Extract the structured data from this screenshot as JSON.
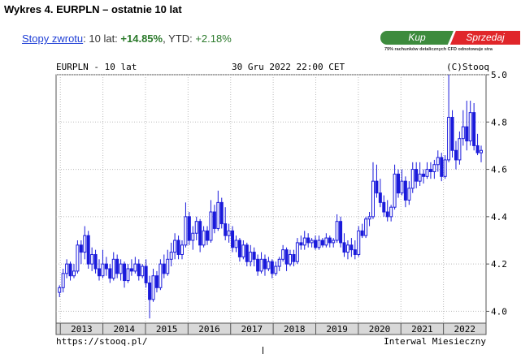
{
  "title": "Wykres 4. EURPLN – ostatnie 10 lat",
  "returns": {
    "link_label": "Stopy zwrotu",
    "period_label": ": 10 lat: ",
    "period_value": "+14.85%",
    "ytd_label": ", YTD: ",
    "ytd_value": "+2.18%"
  },
  "cta": {
    "buy_label": "Kup",
    "sell_label": "Sprzedaj",
    "note": "79% rachunków detalicznych CFD odnotowuje stra"
  },
  "chart_header": {
    "symbol": "EURPLN - 10 lat",
    "date": "30 Gru 2022 22:00 CET",
    "copyright": "(C)Stooq"
  },
  "chart_footer": {
    "source": "https://stooq.pl/",
    "interval": "Interwal Miesieczny"
  },
  "chart_data": {
    "type": "candlestick",
    "title": "EURPLN - 10 lat",
    "ylim": [
      3.95,
      5.0
    ],
    "y_ticks": [
      "4.0",
      "4.2",
      "4.4",
      "4.6",
      "4.8",
      "5.0"
    ],
    "x_ticks": [
      "2013",
      "2014",
      "2015",
      "2016",
      "2017",
      "2018",
      "2019",
      "2020",
      "2021",
      "2022"
    ],
    "x_range": [
      2012.9,
      2023.0
    ],
    "grid": true,
    "color": "#1a1adb",
    "ohlc": [
      [
        4.08,
        4.11,
        4.06,
        4.1
      ],
      [
        4.1,
        4.18,
        4.08,
        4.16
      ],
      [
        4.16,
        4.22,
        4.14,
        4.2
      ],
      [
        4.2,
        4.21,
        4.13,
        4.15
      ],
      [
        4.15,
        4.2,
        4.14,
        4.17
      ],
      [
        4.17,
        4.3,
        4.16,
        4.28
      ],
      [
        4.28,
        4.3,
        4.2,
        4.25
      ],
      [
        4.25,
        4.36,
        4.22,
        4.32
      ],
      [
        4.32,
        4.34,
        4.18,
        4.2
      ],
      [
        4.2,
        4.27,
        4.17,
        4.24
      ],
      [
        4.24,
        4.26,
        4.16,
        4.18
      ],
      [
        4.18,
        4.22,
        4.13,
        4.15
      ],
      [
        4.15,
        4.26,
        4.14,
        4.2
      ],
      [
        4.2,
        4.23,
        4.15,
        4.18
      ],
      [
        4.18,
        4.2,
        4.12,
        4.14
      ],
      [
        4.14,
        4.25,
        4.13,
        4.22
      ],
      [
        4.22,
        4.24,
        4.14,
        4.16
      ],
      [
        4.16,
        4.22,
        4.13,
        4.2
      ],
      [
        4.2,
        4.21,
        4.1,
        4.13
      ],
      [
        4.13,
        4.2,
        4.12,
        4.18
      ],
      [
        4.18,
        4.22,
        4.15,
        4.17
      ],
      [
        4.17,
        4.23,
        4.16,
        4.2
      ],
      [
        4.2,
        4.22,
        4.13,
        4.15
      ],
      [
        4.15,
        4.2,
        4.14,
        4.19
      ],
      [
        4.19,
        4.22,
        4.1,
        4.12
      ],
      [
        4.12,
        4.15,
        3.97,
        4.05
      ],
      [
        4.05,
        4.18,
        4.04,
        4.15
      ],
      [
        4.15,
        4.17,
        4.08,
        4.1
      ],
      [
        4.1,
        4.22,
        4.09,
        4.2
      ],
      [
        4.2,
        4.24,
        4.14,
        4.16
      ],
      [
        4.16,
        4.26,
        4.15,
        4.22
      ],
      [
        4.22,
        4.29,
        4.19,
        4.25
      ],
      [
        4.25,
        4.33,
        4.22,
        4.3
      ],
      [
        4.3,
        4.32,
        4.22,
        4.24
      ],
      [
        4.24,
        4.3,
        4.22,
        4.28
      ],
      [
        4.28,
        4.46,
        4.27,
        4.4
      ],
      [
        4.4,
        4.42,
        4.28,
        4.3
      ],
      [
        4.3,
        4.36,
        4.26,
        4.33
      ],
      [
        4.33,
        4.4,
        4.3,
        4.38
      ],
      [
        4.38,
        4.39,
        4.25,
        4.28
      ],
      [
        4.28,
        4.36,
        4.27,
        4.34
      ],
      [
        4.34,
        4.36,
        4.28,
        4.3
      ],
      [
        4.3,
        4.47,
        4.29,
        4.42
      ],
      [
        4.42,
        4.45,
        4.33,
        4.35
      ],
      [
        4.35,
        4.51,
        4.34,
        4.46
      ],
      [
        4.46,
        4.48,
        4.35,
        4.37
      ],
      [
        4.37,
        4.44,
        4.3,
        4.32
      ],
      [
        4.32,
        4.37,
        4.29,
        4.34
      ],
      [
        4.34,
        4.36,
        4.25,
        4.27
      ],
      [
        4.27,
        4.32,
        4.25,
        4.3
      ],
      [
        4.3,
        4.31,
        4.21,
        4.23
      ],
      [
        4.23,
        4.3,
        4.22,
        4.28
      ],
      [
        4.28,
        4.29,
        4.19,
        4.21
      ],
      [
        4.21,
        4.28,
        4.19,
        4.25
      ],
      [
        4.25,
        4.27,
        4.19,
        4.22
      ],
      [
        4.22,
        4.24,
        4.15,
        4.17
      ],
      [
        4.17,
        4.25,
        4.16,
        4.22
      ],
      [
        4.22,
        4.24,
        4.15,
        4.18
      ],
      [
        4.18,
        4.23,
        4.17,
        4.21
      ],
      [
        4.21,
        4.22,
        4.14,
        4.16
      ],
      [
        4.16,
        4.21,
        4.15,
        4.19
      ],
      [
        4.19,
        4.23,
        4.17,
        4.22
      ],
      [
        4.22,
        4.28,
        4.21,
        4.26
      ],
      [
        4.26,
        4.27,
        4.17,
        4.2
      ],
      [
        4.2,
        4.26,
        4.19,
        4.24
      ],
      [
        4.24,
        4.26,
        4.19,
        4.21
      ],
      [
        4.21,
        4.31,
        4.2,
        4.29
      ],
      [
        4.29,
        4.32,
        4.26,
        4.28
      ],
      [
        4.28,
        4.34,
        4.26,
        4.31
      ],
      [
        4.31,
        4.33,
        4.27,
        4.29
      ],
      [
        4.29,
        4.31,
        4.27,
        4.3
      ],
      [
        4.3,
        4.32,
        4.26,
        4.27
      ],
      [
        4.27,
        4.32,
        4.26,
        4.3
      ],
      [
        4.3,
        4.31,
        4.27,
        4.28
      ],
      [
        4.28,
        4.33,
        4.27,
        4.31
      ],
      [
        4.31,
        4.32,
        4.27,
        4.29
      ],
      [
        4.29,
        4.31,
        4.27,
        4.3
      ],
      [
        4.3,
        4.41,
        4.29,
        4.38
      ],
      [
        4.38,
        4.4,
        4.27,
        4.29
      ],
      [
        4.29,
        4.33,
        4.23,
        4.25
      ],
      [
        4.25,
        4.3,
        4.22,
        4.28
      ],
      [
        4.28,
        4.31,
        4.23,
        4.26
      ],
      [
        4.26,
        4.3,
        4.22,
        4.24
      ],
      [
        4.24,
        4.36,
        4.23,
        4.34
      ],
      [
        4.34,
        4.37,
        4.31,
        4.32
      ],
      [
        4.32,
        4.4,
        4.31,
        4.39
      ],
      [
        4.39,
        4.42,
        4.36,
        4.4
      ],
      [
        4.4,
        4.63,
        4.39,
        4.55
      ],
      [
        4.55,
        4.62,
        4.48,
        4.5
      ],
      [
        4.5,
        4.56,
        4.44,
        4.46
      ],
      [
        4.46,
        4.49,
        4.4,
        4.42
      ],
      [
        4.42,
        4.47,
        4.38,
        4.4
      ],
      [
        4.4,
        4.45,
        4.38,
        4.44
      ],
      [
        4.44,
        4.62,
        4.43,
        4.58
      ],
      [
        4.58,
        4.6,
        4.48,
        4.5
      ],
      [
        4.5,
        4.6,
        4.49,
        4.55
      ],
      [
        4.55,
        4.57,
        4.44,
        4.47
      ],
      [
        4.47,
        4.55,
        4.45,
        4.52
      ],
      [
        4.52,
        4.63,
        4.5,
        4.6
      ],
      [
        4.6,
        4.63,
        4.52,
        4.55
      ],
      [
        4.55,
        4.63,
        4.53,
        4.58
      ],
      [
        4.58,
        4.6,
        4.54,
        4.57
      ],
      [
        4.57,
        4.63,
        4.56,
        4.6
      ],
      [
        4.6,
        4.63,
        4.56,
        4.59
      ],
      [
        4.59,
        4.64,
        4.56,
        4.62
      ],
      [
        4.62,
        4.68,
        4.59,
        4.65
      ],
      [
        4.65,
        4.67,
        4.55,
        4.57
      ],
      [
        4.57,
        4.66,
        4.56,
        4.64
      ],
      [
        4.64,
        5.0,
        4.63,
        4.82
      ],
      [
        4.82,
        4.85,
        4.65,
        4.68
      ],
      [
        4.68,
        4.72,
        4.6,
        4.64
      ],
      [
        4.64,
        4.76,
        4.62,
        4.73
      ],
      [
        4.73,
        4.85,
        4.7,
        4.78
      ],
      [
        4.78,
        4.89,
        4.68,
        4.72
      ],
      [
        4.72,
        4.89,
        4.7,
        4.84
      ],
      [
        4.84,
        4.88,
        4.68,
        4.7
      ],
      [
        4.7,
        4.75,
        4.66,
        4.67
      ],
      [
        4.67,
        4.7,
        4.63,
        4.68
      ]
    ]
  }
}
